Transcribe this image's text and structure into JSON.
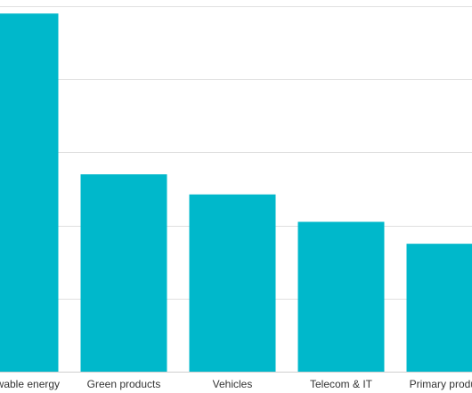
{
  "chart_data": {
    "type": "bar",
    "categories": [
      "Renewable energy",
      "Green products",
      "Vehicles",
      "Telecom & IT",
      "Primary products"
    ],
    "values": [
      98,
      54,
      48.5,
      41,
      35
    ],
    "title": "",
    "xlabel": "",
    "ylabel": "",
    "ylim": [
      0,
      100
    ],
    "grid": true,
    "legend": "none",
    "bar_color": "#00b8cb"
  }
}
